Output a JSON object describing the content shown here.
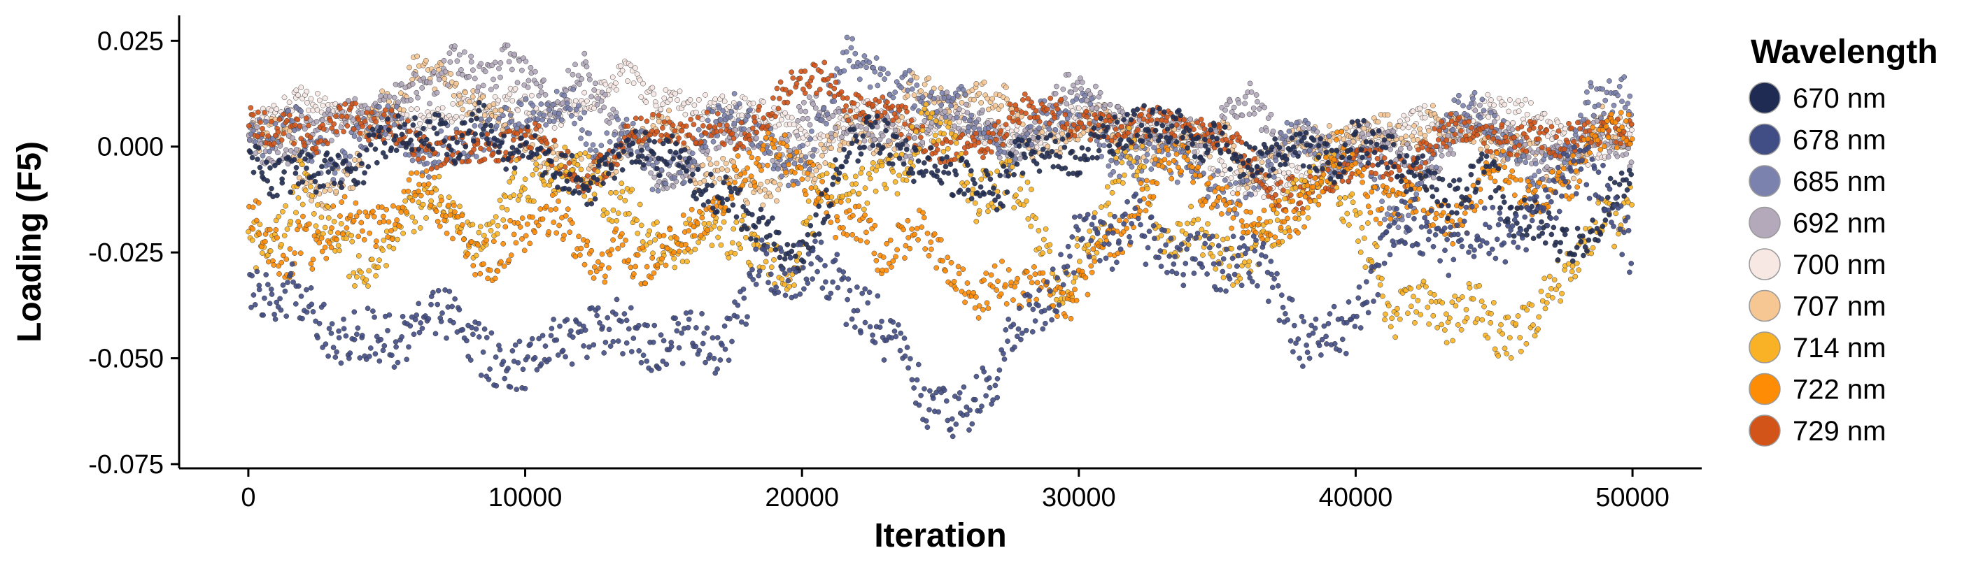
{
  "chart_data": {
    "type": "scatter",
    "title": "",
    "xlabel": "Iteration",
    "ylabel": "Loading (F5)",
    "xlim": [
      -2500,
      52500
    ],
    "ylim": [
      -0.076,
      0.031
    ],
    "x_ticks": [
      0,
      10000,
      20000,
      30000,
      40000,
      50000
    ],
    "x_tick_labels": [
      "0",
      "10000",
      "20000",
      "30000",
      "40000",
      "50000"
    ],
    "y_ticks": [
      0.025,
      0.0,
      -0.025,
      -0.05,
      -0.075
    ],
    "y_tick_labels": [
      "0.025",
      "0.000",
      "-0.025",
      "-0.050",
      "-0.075"
    ],
    "grid": false,
    "legend": {
      "title": "Wavelength",
      "position": "right"
    },
    "x_range_of_points": [
      0,
      50000
    ],
    "series": [
      {
        "name": "670 nm",
        "color": "#1f2b52",
        "approx_range": [
          -0.03,
          0.023
        ]
      },
      {
        "name": "678 nm",
        "color": "#414d85",
        "approx_range": [
          -0.072,
          0.0
        ]
      },
      {
        "name": "685 nm",
        "color": "#7b82ad",
        "approx_range": [
          -0.025,
          0.026
        ]
      },
      {
        "name": "692 nm",
        "color": "#b3a9bb",
        "approx_range": [
          -0.02,
          0.024
        ]
      },
      {
        "name": "700 nm",
        "color": "#f7e8e4",
        "approx_range": [
          -0.012,
          0.022
        ]
      },
      {
        "name": "707 nm",
        "color": "#f6c693",
        "approx_range": [
          -0.015,
          0.025
        ]
      },
      {
        "name": "714 nm",
        "color": "#f9b225",
        "approx_range": [
          -0.053,
          0.01
        ]
      },
      {
        "name": "722 nm",
        "color": "#ff8c05",
        "approx_range": [
          -0.045,
          0.01
        ]
      },
      {
        "name": "729 nm",
        "color": "#d35418",
        "approx_range": [
          -0.015,
          0.026
        ]
      }
    ]
  }
}
